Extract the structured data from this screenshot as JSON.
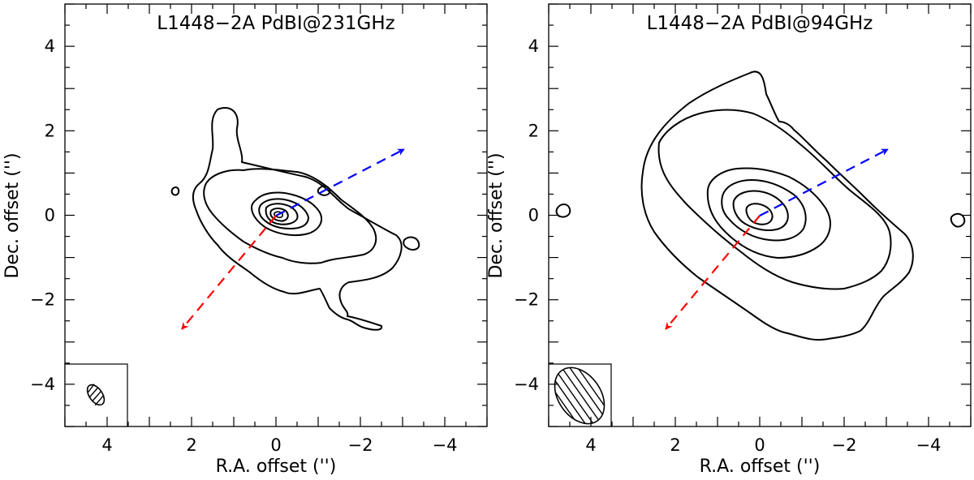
{
  "chart_data": [
    {
      "type": "contour",
      "title": "L1448−2A PdBI@231GHz",
      "xlabel": "R.A. offset ('')",
      "ylabel": "Dec. offset ('')",
      "xlim": [
        5,
        -5
      ],
      "ylim": [
        -5,
        5
      ],
      "x_ticks": [
        "4",
        "2",
        "0",
        "−2",
        "−4"
      ],
      "y_ticks": [
        "−4",
        "−2",
        "0",
        "2",
        "4"
      ],
      "contour_levels": 6,
      "outflow_blue": {
        "from": [
          0,
          0
        ],
        "to": [
          -3.0,
          1.6
        ],
        "color": "#0000ff"
      },
      "outflow_red": {
        "from": [
          0,
          0
        ],
        "to": [
          2.2,
          -2.7
        ],
        "color": "#ff0000"
      },
      "beam": {
        "center": [
          4.2,
          -4.2
        ],
        "major": 0.7,
        "minor": 0.4
      }
    },
    {
      "type": "contour",
      "title": "L1448−2A PdBI@94GHz",
      "xlabel": "R.A. offset ('')",
      "ylabel": "Dec. offset ('')",
      "xlim": [
        5,
        -5
      ],
      "ylim": [
        -5,
        5
      ],
      "x_ticks": [
        "4",
        "2",
        "0",
        "−2",
        "−4"
      ],
      "y_ticks": [
        "−4",
        "−2",
        "0",
        "2",
        "4"
      ],
      "contour_levels": 6,
      "outflow_blue": {
        "from": [
          0,
          0
        ],
        "to": [
          -3.0,
          1.6
        ],
        "color": "#0000ff"
      },
      "outflow_red": {
        "from": [
          0,
          0
        ],
        "to": [
          2.2,
          -2.7
        ],
        "color": "#ff0000"
      },
      "beam": {
        "center": [
          4.0,
          -4.3
        ],
        "major": 1.5,
        "minor": 1.1
      }
    }
  ]
}
